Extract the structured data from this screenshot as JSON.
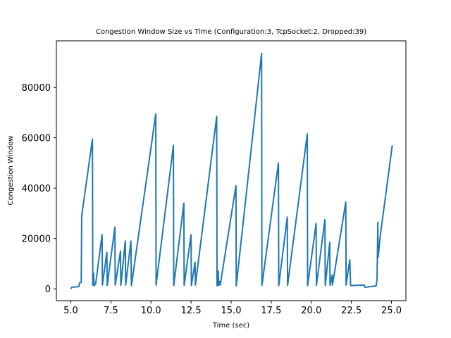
{
  "chart_data": {
    "type": "line",
    "title": "Congestion Window Size vs Time (Configuration:3, TcpSocket:2, Dropped:39)",
    "xlabel": "Time (sec)",
    "ylabel": "Congestion Window",
    "xlim": [
      4.1,
      25.9
    ],
    "ylim": [
      -4700,
      98500
    ],
    "xticks": [
      5.0,
      7.5,
      10.0,
      12.5,
      15.0,
      17.5,
      20.0,
      22.5,
      25.0
    ],
    "xtick_labels": [
      "5.0",
      "7.5",
      "10.0",
      "12.5",
      "15.0",
      "17.5",
      "20.0",
      "22.5",
      "25.0"
    ],
    "yticks": [
      0,
      20000,
      40000,
      60000,
      80000
    ],
    "ytick_labels": [
      "0",
      "20000",
      "40000",
      "60000",
      "80000"
    ],
    "grid": false,
    "series": [
      {
        "color": "#1f77b4",
        "x": [
          5.0,
          5.05,
          5.5,
          5.55,
          5.65,
          5.68,
          6.35,
          6.37,
          6.42,
          6.45,
          6.48,
          6.55,
          6.95,
          6.97,
          7.25,
          7.27,
          7.75,
          7.77,
          8.1,
          8.12,
          8.4,
          8.42,
          8.75,
          8.78,
          10.3,
          10.32,
          11.4,
          11.42,
          12.05,
          12.07,
          12.5,
          12.52,
          12.75,
          12.77,
          14.1,
          14.12,
          14.2,
          14.22,
          14.3,
          14.32,
          15.3,
          15.32,
          16.9,
          16.92,
          17.95,
          17.97,
          18.5,
          18.52,
          19.75,
          19.77,
          20.3,
          20.32,
          20.85,
          20.87,
          21.15,
          21.17,
          21.3,
          21.32,
          22.15,
          22.17,
          22.4,
          22.45,
          23.3,
          23.35,
          24.05,
          24.1,
          24.15,
          24.17,
          24.3,
          25.05
        ],
        "y": [
          0,
          600,
          900,
          2400,
          2600,
          29000,
          59500,
          1500,
          6200,
          1200,
          1400,
          2000,
          21500,
          1500,
          14500,
          1400,
          24500,
          1500,
          15000,
          1400,
          19000,
          1500,
          19000,
          1300,
          69500,
          1500,
          57000,
          1300,
          34000,
          1400,
          21500,
          1300,
          10500,
          1500,
          68500,
          1200,
          7000,
          1400,
          3000,
          1500,
          41000,
          1200,
          93500,
          1400,
          50000,
          1300,
          28500,
          1400,
          61500,
          1300,
          26000,
          1400,
          27500,
          1300,
          18500,
          1400,
          5500,
          1500,
          34500,
          1500,
          11500,
          1300,
          1500,
          600,
          1200,
          4000,
          26500,
          12500,
          21000,
          57000
        ]
      }
    ]
  }
}
